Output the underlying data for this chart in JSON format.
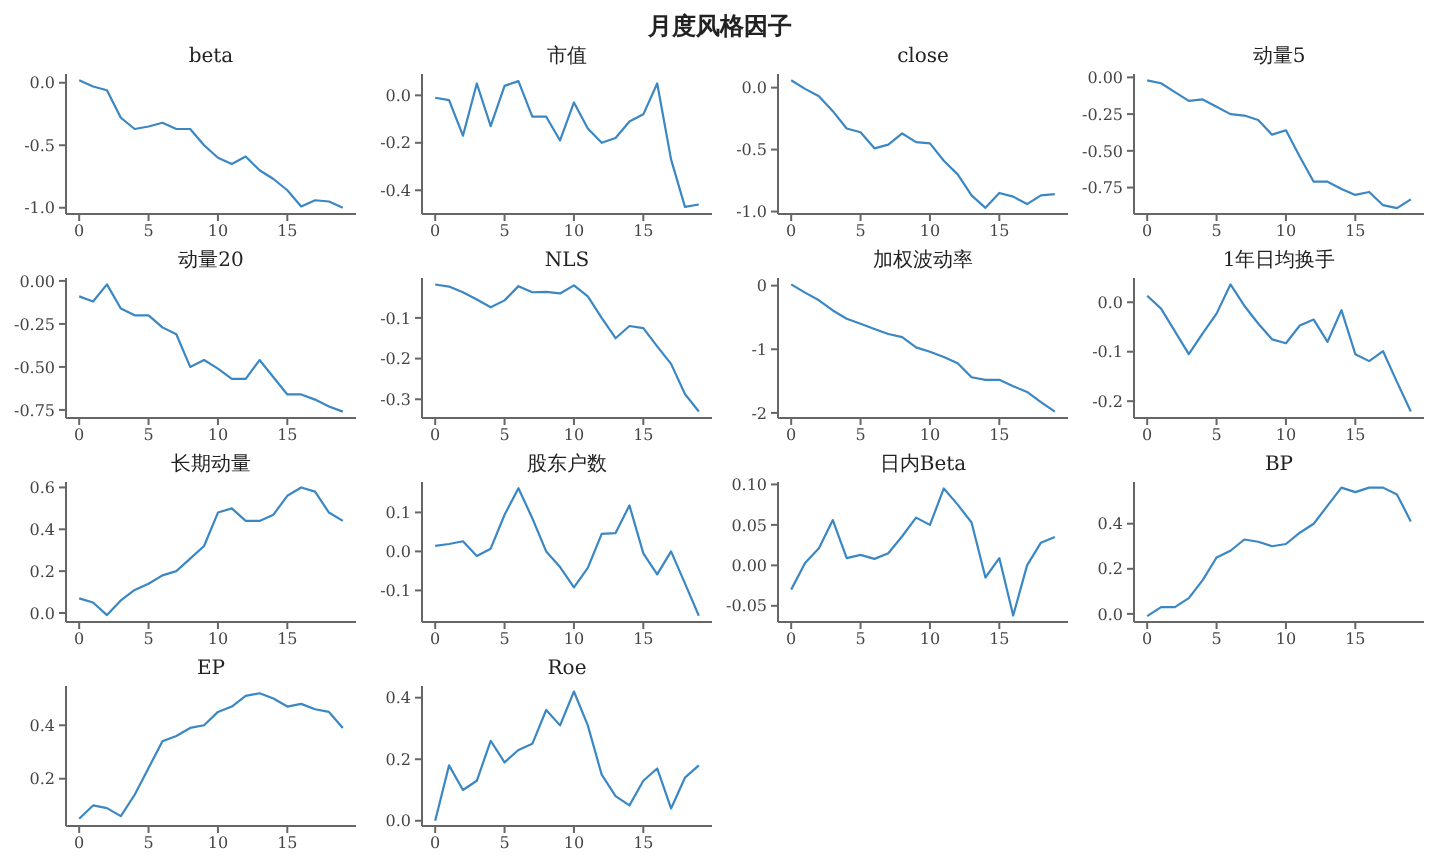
{
  "chart_data": [
    {
      "type": "line",
      "title": "beta",
      "annotations": [
        "月度风格因子"
      ],
      "x": [
        0,
        1,
        2,
        3,
        4,
        5,
        6,
        7,
        8,
        9,
        10,
        11,
        12,
        13,
        14,
        15,
        16,
        17,
        18,
        19
      ],
      "values": [
        0.02,
        -0.03,
        -0.06,
        -0.28,
        -0.37,
        -0.35,
        -0.32,
        -0.37,
        -0.37,
        -0.5,
        -0.6,
        -0.65,
        -0.59,
        -0.7,
        -0.77,
        -0.86,
        -0.99,
        -0.94,
        -0.95,
        -1.0
      ],
      "color": "#3a87c4",
      "xlim": [
        -0.95,
        19.95
      ],
      "xticks": [
        0,
        5,
        10,
        15
      ],
      "ylim": [
        -1.05,
        0.07
      ],
      "yticks": [
        {
          "value": -1,
          "label": "-1.0"
        },
        -0.5,
        {
          "value": 0,
          "label": "0.0"
        }
      ]
    },
    {
      "type": "line",
      "title": "市值",
      "x": [
        0,
        1,
        2,
        3,
        4,
        5,
        6,
        7,
        8,
        9,
        10,
        11,
        12,
        13,
        14,
        15,
        16,
        17,
        18,
        19
      ],
      "values": [
        -0.01,
        -0.02,
        -0.17,
        0.05,
        -0.13,
        0.04,
        0.06,
        -0.09,
        -0.09,
        -0.19,
        -0.03,
        -0.14,
        -0.2,
        -0.18,
        -0.11,
        -0.08,
        0.05,
        -0.27,
        -0.47,
        -0.46
      ],
      "color": "#3a87c4",
      "xlim": [
        -0.95,
        19.95
      ],
      "xticks": [
        0,
        5,
        10,
        15
      ],
      "ylim": [
        -0.5,
        0.09
      ],
      "yticks": [
        -0.4,
        -0.2,
        {
          "value": 0,
          "label": "0.0"
        }
      ]
    },
    {
      "type": "line",
      "title": "close",
      "x": [
        0,
        1,
        2,
        3,
        4,
        5,
        6,
        7,
        8,
        9,
        10,
        11,
        12,
        13,
        14,
        15,
        16,
        17,
        18,
        19
      ],
      "values": [
        0.06,
        -0.01,
        -0.07,
        -0.19,
        -0.33,
        -0.36,
        -0.49,
        -0.46,
        -0.37,
        -0.44,
        -0.45,
        -0.59,
        -0.7,
        -0.87,
        -0.97,
        -0.85,
        -0.88,
        -0.94,
        -0.87,
        -0.86
      ],
      "color": "#3a87c4",
      "xlim": [
        -0.95,
        19.95
      ],
      "xticks": [
        0,
        5,
        10,
        15
      ],
      "ylim": [
        -1.02,
        0.11
      ],
      "yticks": [
        {
          "value": -1,
          "label": "-1.0"
        },
        -0.5,
        {
          "value": 0,
          "label": "0.0"
        }
      ]
    },
    {
      "type": "line",
      "title": "动量5",
      "x": [
        0,
        1,
        2,
        3,
        4,
        5,
        6,
        7,
        8,
        9,
        10,
        11,
        12,
        13,
        14,
        15,
        16,
        17,
        18,
        19
      ],
      "values": [
        -0.02,
        -0.04,
        -0.1,
        -0.16,
        -0.15,
        -0.2,
        -0.25,
        -0.26,
        -0.29,
        -0.39,
        -0.36,
        -0.54,
        -0.71,
        -0.71,
        -0.76,
        -0.8,
        -0.78,
        -0.87,
        -0.89,
        -0.83
      ],
      "color": "#3a87c4",
      "xlim": [
        -0.95,
        19.95
      ],
      "xticks": [
        0,
        5,
        10,
        15
      ],
      "ylim": [
        -0.93,
        0.023
      ],
      "yticks": [
        -0.75,
        {
          "value": -0.5,
          "label": "-0.50"
        },
        -0.25,
        {
          "value": 0,
          "label": "0.00"
        }
      ]
    },
    {
      "type": "line",
      "title": "动量20",
      "x": [
        0,
        1,
        2,
        3,
        4,
        5,
        6,
        7,
        8,
        9,
        10,
        11,
        12,
        13,
        14,
        15,
        16,
        17,
        18,
        19
      ],
      "values": [
        -0.09,
        -0.12,
        -0.02,
        -0.16,
        -0.2,
        -0.2,
        -0.27,
        -0.31,
        -0.5,
        -0.46,
        -0.51,
        -0.57,
        -0.57,
        -0.46,
        -0.56,
        -0.66,
        -0.66,
        -0.69,
        -0.73,
        -0.76
      ],
      "color": "#3a87c4",
      "xlim": [
        -0.95,
        19.95
      ],
      "xticks": [
        0,
        5,
        10,
        15
      ],
      "ylim": [
        -0.797,
        0.017
      ],
      "yticks": [
        -0.75,
        {
          "value": -0.5,
          "label": "-0.50"
        },
        -0.25,
        {
          "value": 0,
          "label": "0.00"
        }
      ]
    },
    {
      "type": "line",
      "title": "NLS",
      "x": [
        0,
        1,
        2,
        3,
        4,
        5,
        6,
        7,
        8,
        9,
        10,
        11,
        12,
        13,
        14,
        15,
        16,
        17,
        18,
        19
      ],
      "values": [
        -0.018,
        -0.023,
        -0.037,
        -0.055,
        -0.074,
        -0.057,
        -0.022,
        -0.037,
        -0.036,
        -0.04,
        -0.02,
        -0.047,
        -0.1,
        -0.15,
        -0.12,
        -0.125,
        -0.17,
        -0.213,
        -0.287,
        -0.33
      ],
      "color": "#3a87c4",
      "xlim": [
        -0.95,
        19.95
      ],
      "xticks": [
        0,
        5,
        10,
        15
      ],
      "ylim": [
        -0.346,
        -0.002
      ],
      "yticks": [
        -0.3,
        -0.2,
        -0.1
      ]
    },
    {
      "type": "line",
      "title": "加权波动率",
      "x": [
        0,
        1,
        2,
        3,
        4,
        5,
        6,
        7,
        8,
        9,
        10,
        11,
        12,
        13,
        14,
        15,
        16,
        17,
        18,
        19
      ],
      "values": [
        0.02,
        -0.11,
        -0.23,
        -0.39,
        -0.52,
        -0.6,
        -0.68,
        -0.76,
        -0.81,
        -0.97,
        -1.04,
        -1.12,
        -1.22,
        -1.44,
        -1.48,
        -1.48,
        -1.58,
        -1.67,
        -1.83,
        -1.98
      ],
      "color": "#3a87c4",
      "xlim": [
        -0.95,
        19.95
      ],
      "xticks": [
        0,
        5,
        10,
        15
      ],
      "ylim": [
        -2.08,
        0.12
      ],
      "yticks": [
        -2,
        -1,
        0
      ]
    },
    {
      "type": "line",
      "title": "1年日均换手",
      "x": [
        0,
        1,
        2,
        3,
        4,
        5,
        6,
        7,
        8,
        9,
        10,
        11,
        12,
        13,
        14,
        15,
        16,
        17,
        18,
        19
      ],
      "values": [
        0.013,
        -0.013,
        -0.059,
        -0.105,
        -0.063,
        -0.023,
        0.036,
        -0.007,
        -0.043,
        -0.075,
        -0.083,
        -0.047,
        -0.035,
        -0.08,
        -0.016,
        -0.105,
        -0.119,
        -0.099,
        -0.161,
        -0.221
      ],
      "color": "#3a87c4",
      "xlim": [
        -0.95,
        19.95
      ],
      "xticks": [
        0,
        5,
        10,
        15
      ],
      "ylim": [
        -0.234,
        0.049
      ],
      "yticks": [
        -0.2,
        -0.1,
        {
          "value": 0,
          "label": "0.0"
        }
      ]
    },
    {
      "type": "line",
      "title": "长期动量",
      "x": [
        0,
        1,
        2,
        3,
        4,
        5,
        6,
        7,
        8,
        9,
        10,
        11,
        12,
        13,
        14,
        15,
        16,
        17,
        18,
        19
      ],
      "values": [
        0.07,
        0.05,
        -0.01,
        0.06,
        0.11,
        0.14,
        0.18,
        0.2,
        0.26,
        0.32,
        0.48,
        0.5,
        0.44,
        0.44,
        0.47,
        0.56,
        0.6,
        0.58,
        0.48,
        0.44
      ],
      "color": "#3a87c4",
      "xlim": [
        -0.95,
        19.95
      ],
      "xticks": [
        0,
        5,
        10,
        15
      ],
      "ylim": [
        -0.043,
        0.626
      ],
      "yticks": [
        {
          "value": 0,
          "label": "0.0"
        },
        0.2,
        0.4,
        0.6
      ]
    },
    {
      "type": "line",
      "title": "股东户数",
      "x": [
        0,
        1,
        2,
        3,
        4,
        5,
        6,
        7,
        8,
        9,
        10,
        11,
        12,
        13,
        14,
        15,
        16,
        17,
        18,
        19
      ],
      "values": [
        0.014,
        0.019,
        0.026,
        -0.012,
        0.007,
        0.094,
        0.162,
        0.085,
        0.0,
        -0.04,
        -0.092,
        -0.042,
        0.045,
        0.047,
        0.118,
        -0.005,
        -0.059,
        0.0,
        -0.082,
        -0.165
      ],
      "color": "#3a87c4",
      "xlim": [
        -0.95,
        19.95
      ],
      "xticks": [
        0,
        5,
        10,
        15
      ],
      "ylim": [
        -0.181,
        0.178
      ],
      "yticks": [
        -0.1,
        {
          "value": 0,
          "label": "0.0"
        },
        0.1
      ]
    },
    {
      "type": "line",
      "title": "日内Beta",
      "x": [
        0,
        1,
        2,
        3,
        4,
        5,
        6,
        7,
        8,
        9,
        10,
        11,
        12,
        13,
        14,
        15,
        16,
        17,
        18,
        19
      ],
      "values": [
        -0.03,
        0.003,
        0.021,
        0.056,
        0.009,
        0.013,
        0.008,
        0.015,
        0.036,
        0.059,
        0.05,
        0.095,
        0.075,
        0.053,
        -0.015,
        0.009,
        -0.062,
        0.0,
        0.028,
        0.035
      ],
      "color": "#3a87c4",
      "xlim": [
        -0.95,
        19.95
      ],
      "xticks": [
        0,
        5,
        10,
        15
      ],
      "ylim": [
        -0.07,
        0.103
      ],
      "yticks": [
        -0.05,
        {
          "value": 0,
          "label": "0.00"
        },
        0.05,
        {
          "value": 0.1,
          "label": "0.10"
        }
      ]
    },
    {
      "type": "line",
      "title": "BP",
      "x": [
        0,
        1,
        2,
        3,
        4,
        5,
        6,
        7,
        8,
        9,
        10,
        11,
        12,
        13,
        14,
        15,
        16,
        17,
        18,
        19
      ],
      "values": [
        -0.01,
        0.03,
        0.03,
        0.07,
        0.15,
        0.25,
        0.28,
        0.33,
        0.32,
        0.3,
        0.31,
        0.36,
        0.4,
        0.48,
        0.56,
        0.54,
        0.56,
        0.56,
        0.53,
        0.41
      ],
      "color": "#3a87c4",
      "xlim": [
        -0.95,
        19.95
      ],
      "xticks": [
        0,
        5,
        10,
        15
      ],
      "ylim": [
        -0.036,
        0.585
      ],
      "yticks": [
        {
          "value": 0,
          "label": "0.0"
        },
        0.2,
        0.4
      ]
    },
    {
      "type": "line",
      "title": "EP",
      "x": [
        0,
        1,
        2,
        3,
        4,
        5,
        6,
        7,
        8,
        9,
        10,
        11,
        12,
        13,
        14,
        15,
        16,
        17,
        18,
        19
      ],
      "values": [
        0.05,
        0.1,
        0.09,
        0.06,
        0.14,
        0.24,
        0.34,
        0.36,
        0.39,
        0.4,
        0.45,
        0.47,
        0.51,
        0.52,
        0.5,
        0.47,
        0.48,
        0.46,
        0.45,
        0.39
      ],
      "color": "#3a87c4",
      "xlim": [
        -0.95,
        19.95
      ],
      "xticks": [
        0,
        5,
        10,
        15
      ],
      "ylim": [
        0.023,
        0.547
      ],
      "yticks": [
        0.2,
        0.4
      ]
    },
    {
      "type": "line",
      "title": "Roe",
      "x": [
        0,
        1,
        2,
        3,
        4,
        5,
        6,
        7,
        8,
        9,
        10,
        11,
        12,
        13,
        14,
        15,
        16,
        17,
        18,
        19
      ],
      "values": [
        0.0,
        0.18,
        0.1,
        0.13,
        0.26,
        0.19,
        0.23,
        0.25,
        0.36,
        0.31,
        0.42,
        0.31,
        0.15,
        0.08,
        0.05,
        0.13,
        0.17,
        0.04,
        0.14,
        0.18
      ],
      "color": "#3a87c4",
      "xlim": [
        -0.95,
        19.95
      ],
      "xticks": [
        0,
        5,
        10,
        15
      ],
      "ylim": [
        -0.017,
        0.438
      ],
      "yticks": [
        {
          "value": 0,
          "label": "0.0"
        },
        0.2,
        0.4
      ]
    }
  ]
}
